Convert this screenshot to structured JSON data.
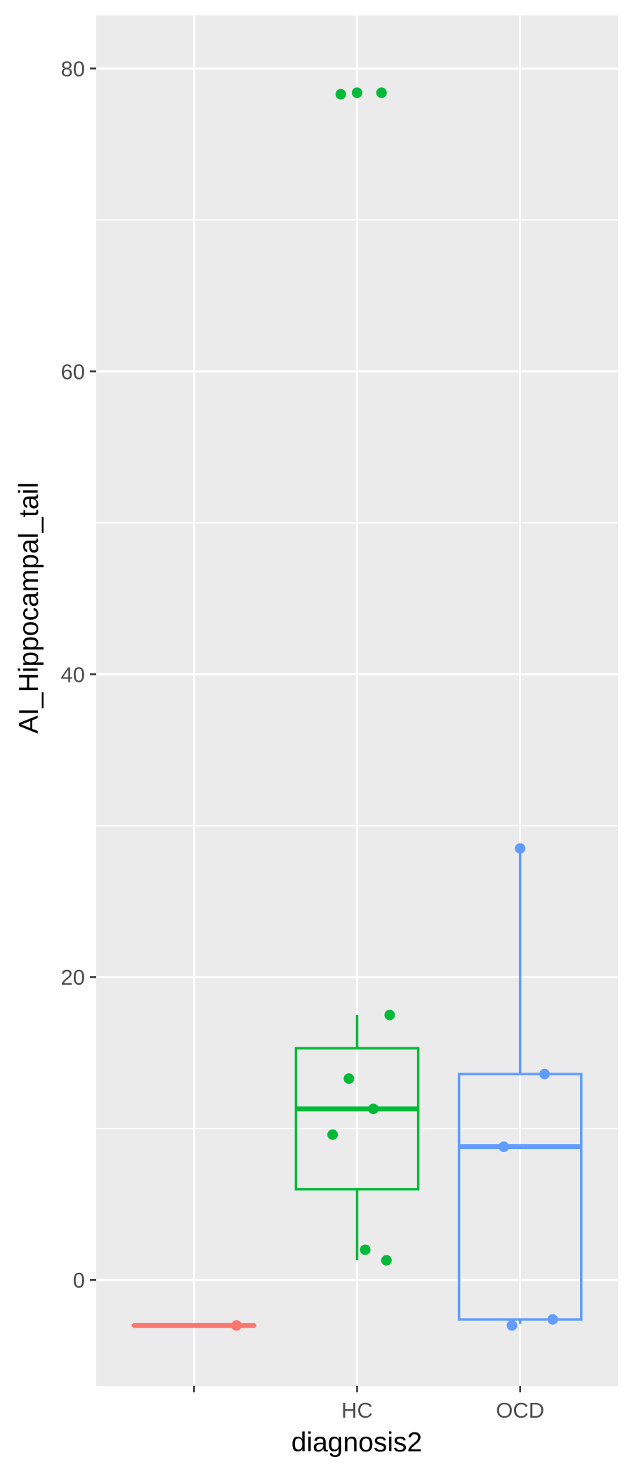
{
  "chart_data": {
    "type": "boxplot",
    "xlabel": "diagnosis2",
    "ylabel": "AI_Hippocampal_tail",
    "categories": [
      "",
      "HC",
      "OCD"
    ],
    "ylim": [
      -7,
      83.5
    ],
    "yticks": [
      0,
      20,
      40,
      60,
      80
    ],
    "grid": true,
    "legend": "none",
    "colors": {
      "": "#f8766d",
      "HC": "#00ba38",
      "OCD": "#619cff"
    },
    "background": "#ebebeb",
    "series": [
      {
        "category": "",
        "box": {
          "lower_whisker": -3,
          "q1": -3,
          "median": -3,
          "q3": -3,
          "upper_whisker": -3
        },
        "points": [
          {
            "x": "",
            "y": -3
          }
        ]
      },
      {
        "category": "HC",
        "box": {
          "lower_whisker": 1.3,
          "q1": 6,
          "median": 11.3,
          "q3": 15.3,
          "upper_whisker": 17.5
        },
        "points": [
          {
            "x": "HC",
            "y": 78.4
          },
          {
            "x": "HC",
            "y": 78.4
          },
          {
            "x": "HC",
            "y": 78.3
          },
          {
            "x": "HC",
            "y": 17.5
          },
          {
            "x": "HC",
            "y": 13.3
          },
          {
            "x": "HC",
            "y": 11.3
          },
          {
            "x": "HC",
            "y": 9.6
          },
          {
            "x": "HC",
            "y": 2.0
          },
          {
            "x": "HC",
            "y": 1.3
          }
        ]
      },
      {
        "category": "OCD",
        "box": {
          "lower_whisker": -2.9,
          "q1": -2.6,
          "median": 8.8,
          "q3": 13.6,
          "upper_whisker": 28.5
        },
        "points": [
          {
            "x": "OCD",
            "y": 28.5
          },
          {
            "x": "OCD",
            "y": 13.6
          },
          {
            "x": "OCD",
            "y": 8.8
          },
          {
            "x": "OCD",
            "y": -2.6
          },
          {
            "x": "OCD",
            "y": -3.0
          }
        ]
      }
    ]
  }
}
